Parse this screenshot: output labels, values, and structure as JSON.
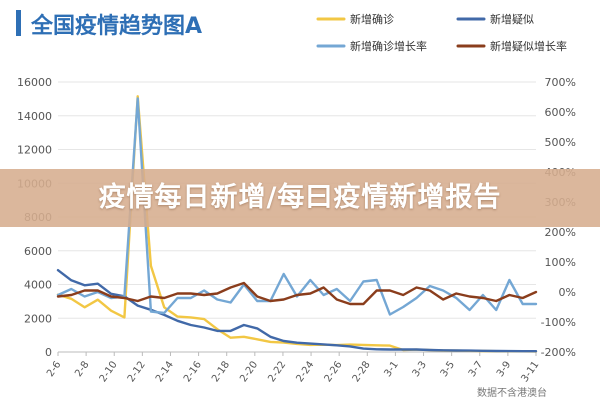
{
  "colors": {
    "title_bar": "#2e6fb5",
    "title_text": "#2e6fb5",
    "confirmed": "#f2c744",
    "suspected": "#4169a8",
    "confirmed_growth": "#74a7d4",
    "suspected_growth": "#8a3d1c",
    "banner_bg": "#d6ad8e",
    "banner_text": "#ffffff",
    "grid": "#e6e6e6",
    "axis_text": "#555555"
  },
  "source": "数据不含港澳台",
  "banner": {
    "text": "疫情每日新增/每曰疫情新增报告"
  },
  "chart_data": {
    "type": "line",
    "title": "全国疫情趋势图A",
    "xlabel": "",
    "ylabel": "",
    "x_ticks": [
      "2-6",
      "2-8",
      "2-10",
      "2-12",
      "2-14",
      "2-16",
      "2-18",
      "2-20",
      "2-22",
      "2-24",
      "2-26",
      "2-28",
      "3-1",
      "3-3",
      "3-5",
      "3-7",
      "3-9",
      "3-11"
    ],
    "y_left": {
      "ylim": [
        0,
        16000
      ],
      "ticks": [
        "0",
        "2000",
        "4000",
        "6000",
        "8000",
        "10000",
        "12000",
        "14000",
        "16000"
      ]
    },
    "y_right": {
      "ylim": [
        -200,
        700
      ],
      "ticks": [
        "-200%",
        "-100%",
        "0%",
        "100%",
        "200%",
        "300%",
        "400%",
        "500%",
        "600%",
        "700%"
      ]
    },
    "legend": {
      "position": "top"
    },
    "grid": true,
    "series": [
      {
        "name": "新增确诊",
        "axis": "left",
        "color": "#f2c744",
        "values": [
          3400,
          3150,
          2650,
          3100,
          2450,
          2050,
          15150,
          5100,
          2650,
          2100,
          2050,
          1950,
          1350,
          850,
          900,
          750,
          600,
          560,
          480,
          420,
          430,
          410,
          440,
          420,
          400,
          380,
          120,
          140,
          115,
          90,
          80,
          70,
          60,
          50,
          45,
          40,
          35
        ]
      },
      {
        "name": "新增疑似",
        "axis": "left",
        "color": "#4169a8",
        "values": [
          4850,
          4250,
          3950,
          4050,
          3450,
          3300,
          2750,
          2500,
          2200,
          1850,
          1600,
          1450,
          1250,
          1250,
          1600,
          1400,
          900,
          650,
          550,
          500,
          450,
          400,
          330,
          200,
          160,
          150,
          150,
          150,
          120,
          100,
          90,
          80,
          70,
          60,
          55,
          50,
          45
        ]
      },
      {
        "name": "新增确诊增长率",
        "axis": "right",
        "color": "#74a7d4",
        "values": [
          -10,
          10,
          -15,
          0,
          -20,
          -15,
          645,
          -65,
          -70,
          -20,
          -20,
          5,
          -25,
          -35,
          25,
          -30,
          -30,
          60,
          -15,
          40,
          -10,
          10,
          -30,
          35,
          40,
          -75,
          -50,
          -20,
          20,
          5,
          -20,
          -60,
          -10,
          -60,
          40,
          -40,
          -40
        ]
      },
      {
        "name": "新增疑似增长率",
        "axis": "right",
        "color": "#8a3d1c",
        "values": [
          -15,
          -10,
          5,
          5,
          -15,
          -20,
          -30,
          -15,
          -20,
          -5,
          -5,
          -10,
          -5,
          15,
          30,
          -15,
          -30,
          -25,
          -10,
          -5,
          15,
          -25,
          -40,
          -40,
          5,
          5,
          -10,
          15,
          5,
          -25,
          -5,
          -15,
          -20,
          -30,
          -10,
          -20,
          0
        ]
      }
    ]
  }
}
